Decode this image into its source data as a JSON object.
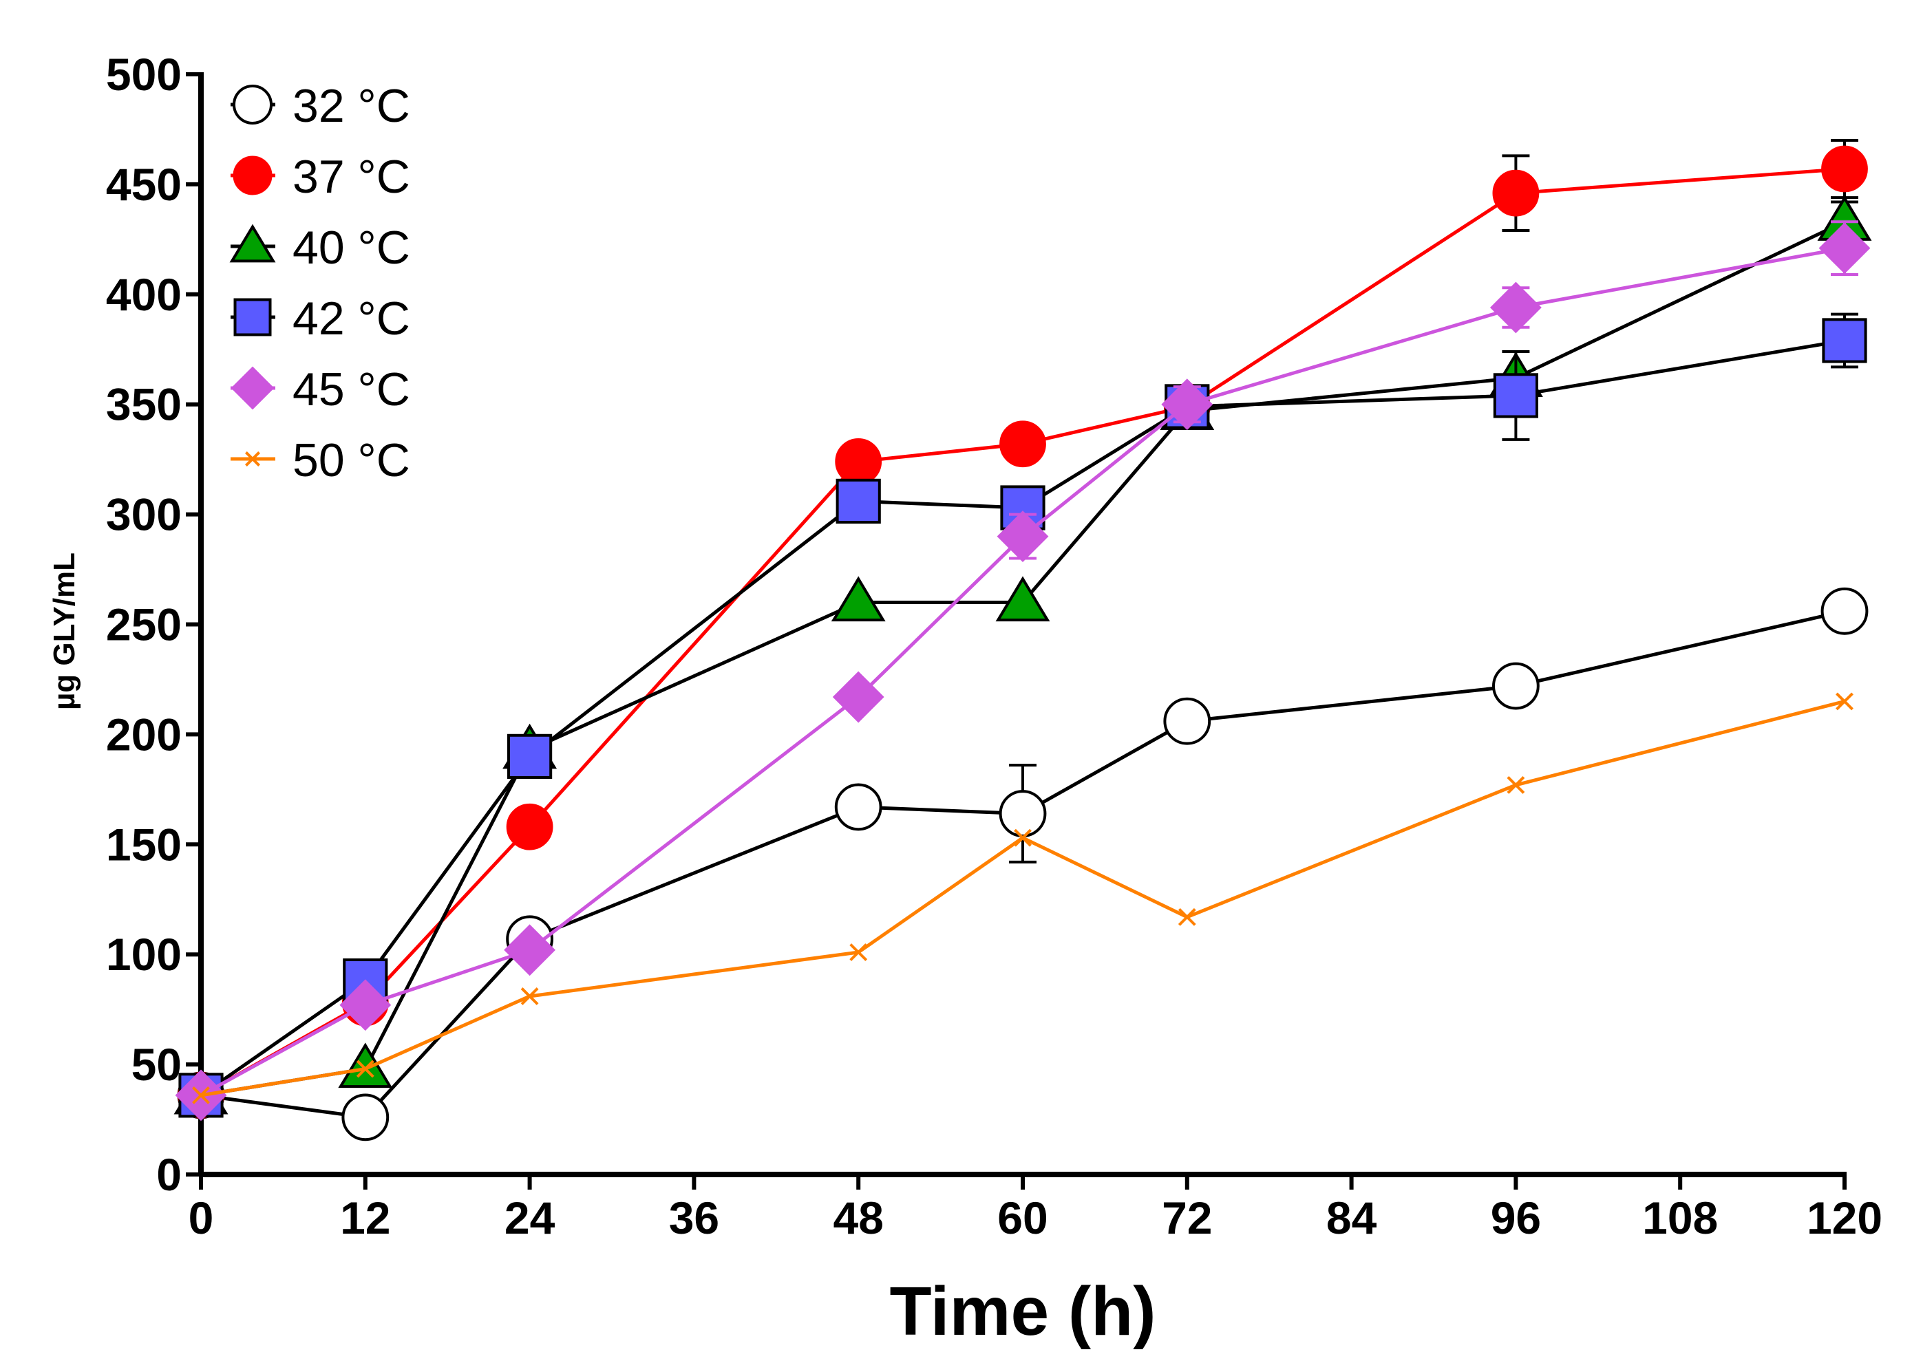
{
  "chart_data": {
    "type": "line",
    "title": "",
    "xlabel": "Time (h)",
    "ylabel": "µg GLY/mL",
    "xlim": [
      0,
      120
    ],
    "ylim": [
      0,
      500
    ],
    "xticks": [
      0,
      12,
      24,
      36,
      48,
      60,
      72,
      84,
      96,
      108,
      120
    ],
    "yticks": [
      0,
      50,
      100,
      150,
      200,
      250,
      300,
      350,
      400,
      450,
      500
    ],
    "legend_position": "top-left",
    "x": [
      0,
      12,
      24,
      48,
      60,
      72,
      96,
      120
    ],
    "series": [
      {
        "name": "32 °C",
        "color": "#000000",
        "fill": "#ffffff",
        "marker": "circle-open",
        "values": [
          36,
          26,
          107,
          167,
          164,
          206,
          222,
          256
        ],
        "errors": [
          0,
          0,
          0,
          0,
          22,
          0,
          0,
          8
        ]
      },
      {
        "name": "37 °C",
        "color": "#ff0000",
        "fill": "#ff0000",
        "marker": "circle",
        "values": [
          36,
          78,
          158,
          324,
          332,
          349,
          446,
          457
        ],
        "errors": [
          0,
          0,
          0,
          0,
          0,
          0,
          17,
          13
        ]
      },
      {
        "name": "40 °C",
        "color": "#000000",
        "fill": "#00a000",
        "marker": "triangle",
        "values": [
          36,
          48,
          193,
          260,
          260,
          347,
          362,
          433
        ],
        "errors": [
          0,
          0,
          0,
          0,
          0,
          8,
          0,
          9
        ]
      },
      {
        "name": "42 °C",
        "color": "#000000",
        "fill": "#5a5aff",
        "marker": "square",
        "values": [
          36,
          88,
          190,
          306,
          303,
          349,
          354,
          379
        ],
        "errors": [
          0,
          0,
          0,
          0,
          0,
          0,
          20,
          12
        ]
      },
      {
        "name": "45 °C",
        "color": "#cc55dd",
        "fill": "#cc55dd",
        "marker": "diamond",
        "values": [
          36,
          77,
          102,
          217,
          290,
          350,
          394,
          421
        ],
        "errors": [
          0,
          0,
          0,
          0,
          10,
          8,
          9,
          12
        ]
      },
      {
        "name": "50 °C",
        "color": "#ff8000",
        "fill": "#ff8000",
        "marker": "x",
        "values": [
          36,
          48,
          81,
          101,
          153,
          117,
          177,
          215
        ],
        "errors": [
          0,
          0,
          0,
          0,
          0,
          0,
          0,
          0
        ]
      }
    ]
  }
}
